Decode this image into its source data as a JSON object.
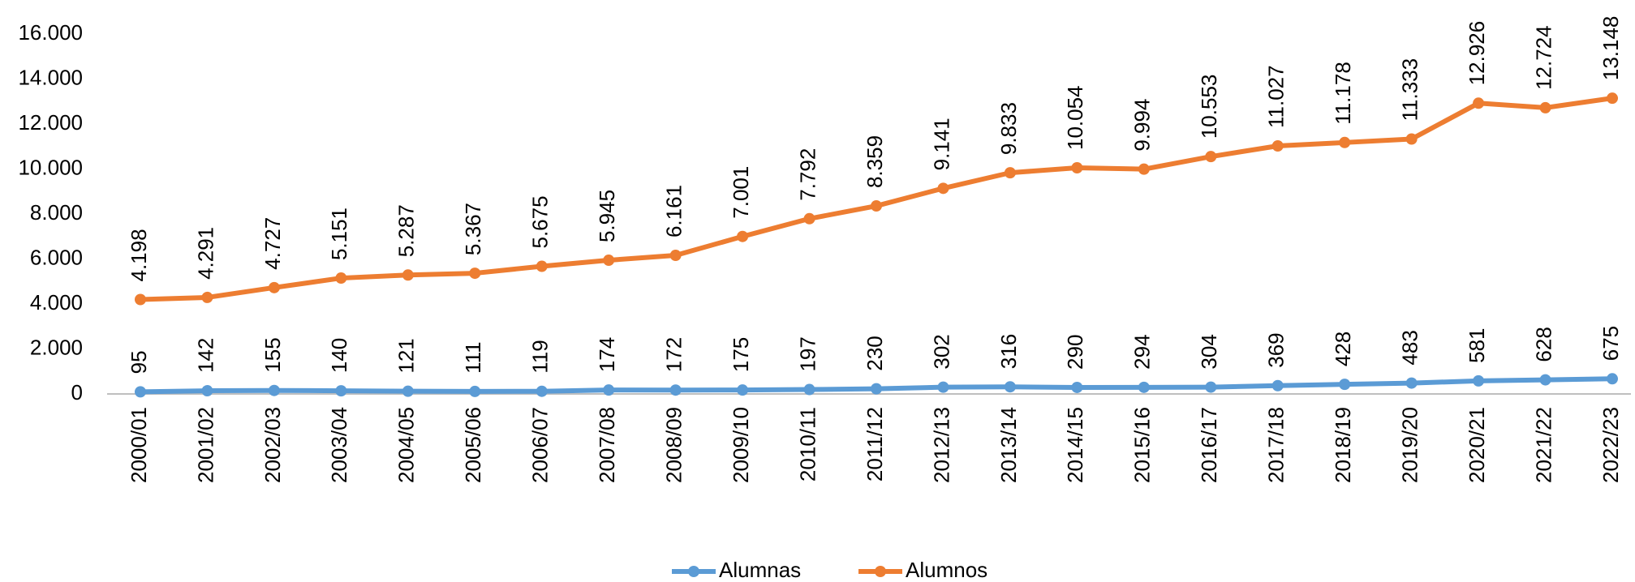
{
  "chart_data": {
    "type": "line",
    "categories": [
      "2000/01",
      "2001/02",
      "2002/03",
      "2003/04",
      "2004/05",
      "2005/06",
      "2006/07",
      "2007/08",
      "2008/09",
      "2009/10",
      "2010/11",
      "2011/12",
      "2012/13",
      "2013/14",
      "2014/15",
      "2015/16",
      "2016/17",
      "2017/18",
      "2018/19",
      "2019/20",
      "2020/21",
      "2021/22",
      "2022/23"
    ],
    "series": [
      {
        "name": "Alumnas",
        "color": "#5b9bd5",
        "values": [
          95,
          142,
          155,
          140,
          121,
          111,
          119,
          174,
          172,
          175,
          197,
          230,
          302,
          316,
          290,
          294,
          304,
          369,
          428,
          483,
          581,
          628,
          675
        ]
      },
      {
        "name": "Alumnos",
        "color": "#ed7d31",
        "values": [
          4198,
          4291,
          4727,
          5151,
          5287,
          5367,
          5675,
          5945,
          6161,
          7001,
          7792,
          8359,
          9141,
          9833,
          10054,
          9994,
          10553,
          11027,
          11178,
          11333,
          12926,
          12724,
          13148
        ],
        "value_labels": [
          "4.198",
          "4.291",
          "4.727",
          "5.151",
          "5.287",
          "5.367",
          "5.675",
          "5.945",
          "6.161",
          "7.001",
          "7.792",
          "8.359",
          "9.141",
          "9.833",
          "10.054",
          "9.994",
          "10.553",
          "11.027",
          "11.178",
          "11.333",
          "12.926",
          "12.724",
          "13.148"
        ]
      }
    ],
    "ylim": [
      0,
      16000
    ],
    "yticks": [
      0,
      {
        "value": 2000,
        "label": "2.000"
      },
      {
        "value": 4000,
        "label": "4.000"
      },
      {
        "value": 6000,
        "label": "6.000"
      },
      {
        "value": 8000,
        "label": "8.000"
      },
      {
        "value": 10000,
        "label": "10.000"
      },
      {
        "value": 12000,
        "label": "12.000"
      },
      {
        "value": 14000,
        "label": "14.000"
      },
      {
        "value": 16000,
        "label": "16.000"
      }
    ],
    "legend": "bottom"
  }
}
